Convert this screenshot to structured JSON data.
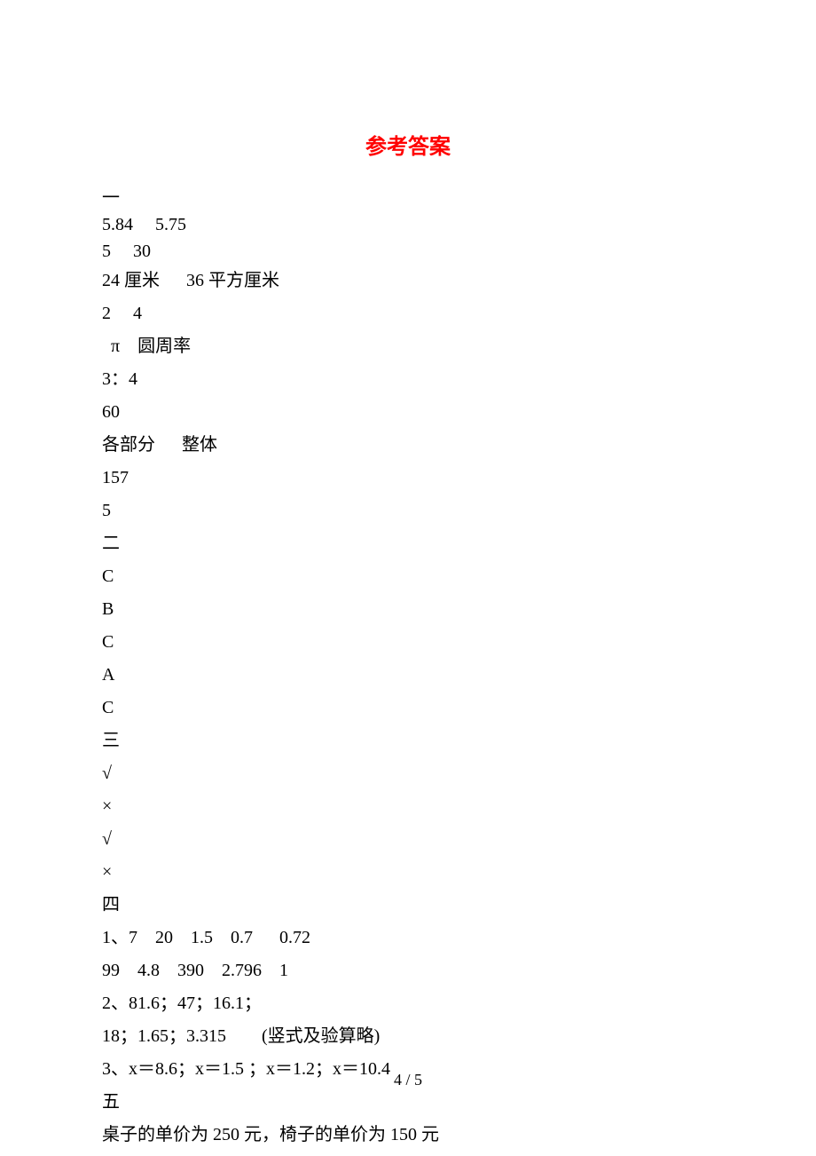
{
  "title": "参考答案",
  "lines": [
    {
      "text": "一",
      "cls": "content-line tight"
    },
    {
      "text": "5.84     5.75",
      "cls": "content-line tight"
    },
    {
      "text": "5     30",
      "cls": "content-line tight"
    },
    {
      "text": "24 厘米      36 平方厘米",
      "cls": "content-line"
    },
    {
      "text": "2     4",
      "cls": "content-line"
    },
    {
      "text": "  π    圆周率",
      "cls": "content-line"
    },
    {
      "text": "3：4",
      "cls": "content-line"
    },
    {
      "text": "60",
      "cls": "content-line"
    },
    {
      "text": "各部分      整体",
      "cls": "content-line"
    },
    {
      "text": "157",
      "cls": "content-line"
    },
    {
      "text": "5",
      "cls": "content-line"
    },
    {
      "text": "二",
      "cls": "content-line"
    },
    {
      "text": "C",
      "cls": "content-line"
    },
    {
      "text": "B",
      "cls": "content-line"
    },
    {
      "text": "C",
      "cls": "content-line"
    },
    {
      "text": "A",
      "cls": "content-line"
    },
    {
      "text": "C",
      "cls": "content-line"
    },
    {
      "text": "三",
      "cls": "content-line"
    },
    {
      "text": "√",
      "cls": "content-line"
    },
    {
      "text": "×",
      "cls": "content-line"
    },
    {
      "text": "√",
      "cls": "content-line"
    },
    {
      "text": "×",
      "cls": "content-line"
    },
    {
      "text": "四",
      "cls": "content-line"
    },
    {
      "text": "1、7    20    1.5    0.7      0.72",
      "cls": "content-line"
    },
    {
      "text": "99    4.8    390    2.796    1",
      "cls": "content-line"
    },
    {
      "text": "2、81.6；47；16.1；",
      "cls": "content-line"
    },
    {
      "text": "18；1.65；3.315        (竖式及验算略)",
      "cls": "content-line"
    },
    {
      "text": "3、x＝8.6；x＝1.5 ；x＝1.2；x＝10.4",
      "cls": "content-line"
    },
    {
      "text": "五",
      "cls": "content-line"
    },
    {
      "text": "桌子的单价为 250 元，椅子的单价为 150 元",
      "cls": "content-line"
    }
  ],
  "page_number": "4 / 5",
  "colors": {
    "title_color": "#ff0000",
    "text_color": "#000000",
    "background_color": "#ffffff"
  },
  "typography": {
    "title_fontsize": 24,
    "body_fontsize": 20,
    "page_number_fontsize": 18,
    "title_fontweight": "bold",
    "body_font": "SimSun",
    "title_font": "SimHei"
  }
}
